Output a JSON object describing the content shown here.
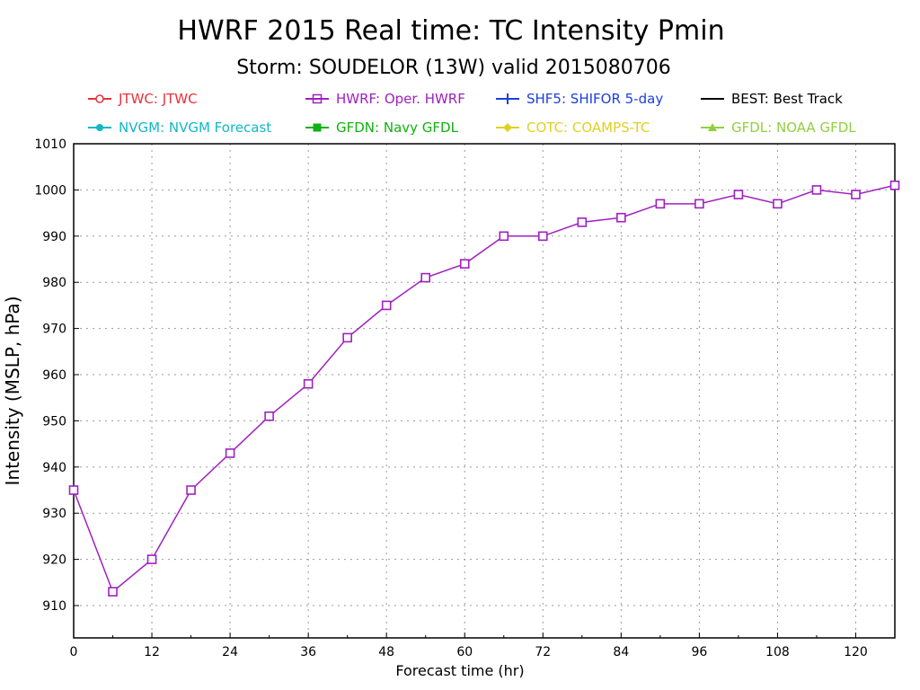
{
  "chart_data": {
    "type": "line",
    "title": "HWRF 2015 Real time: TC Intensity Pmin",
    "subtitle": "Storm: SOUDELOR (13W) valid 2015080706",
    "xlabel": "Forecast time (hr)",
    "ylabel": "Intensity (MSLP, hPa)",
    "xlim": [
      0,
      126
    ],
    "ylim": [
      903,
      1010
    ],
    "xticks": [
      0,
      12,
      24,
      36,
      48,
      60,
      72,
      84,
      96,
      108,
      120
    ],
    "yticks": [
      910,
      920,
      930,
      940,
      950,
      960,
      970,
      980,
      990,
      1000,
      1010
    ],
    "grid": true,
    "legend_position": "top",
    "legend": [
      {
        "label": "JTWC: JTWC",
        "color": "#e8303a",
        "marker": "open-circle"
      },
      {
        "label": "HWRF: Oper. HWRF",
        "color": "#a020c0",
        "marker": "open-square"
      },
      {
        "label": "SHF5: SHIFOR 5-day",
        "color": "#1c3fe0",
        "marker": "plus"
      },
      {
        "label": "BEST: Best Track",
        "color": "#000000",
        "marker": "line"
      },
      {
        "label": "NVGM: NVGM Forecast",
        "color": "#10b8c8",
        "marker": "filled-circle"
      },
      {
        "label": "GFDN: Navy GFDL",
        "color": "#12b012",
        "marker": "filled-square"
      },
      {
        "label": "COTC: COAMPS-TC",
        "color": "#e0d020",
        "marker": "diamond"
      },
      {
        "label": "GFDL: NOAA GFDL",
        "color": "#90d040",
        "marker": "triangle"
      }
    ],
    "series": [
      {
        "name": "HWRF: Oper. HWRF",
        "color": "#a020c0",
        "x": [
          0,
          6,
          12,
          18,
          24,
          30,
          36,
          42,
          48,
          54,
          60,
          66,
          72,
          78,
          84,
          90,
          96,
          102,
          108,
          114,
          120,
          126
        ],
        "y": [
          935,
          913,
          920,
          935,
          943,
          951,
          958,
          968,
          975,
          981,
          984,
          990,
          990,
          993,
          994,
          997,
          997,
          999,
          997,
          1000,
          999,
          1001
        ]
      }
    ]
  }
}
